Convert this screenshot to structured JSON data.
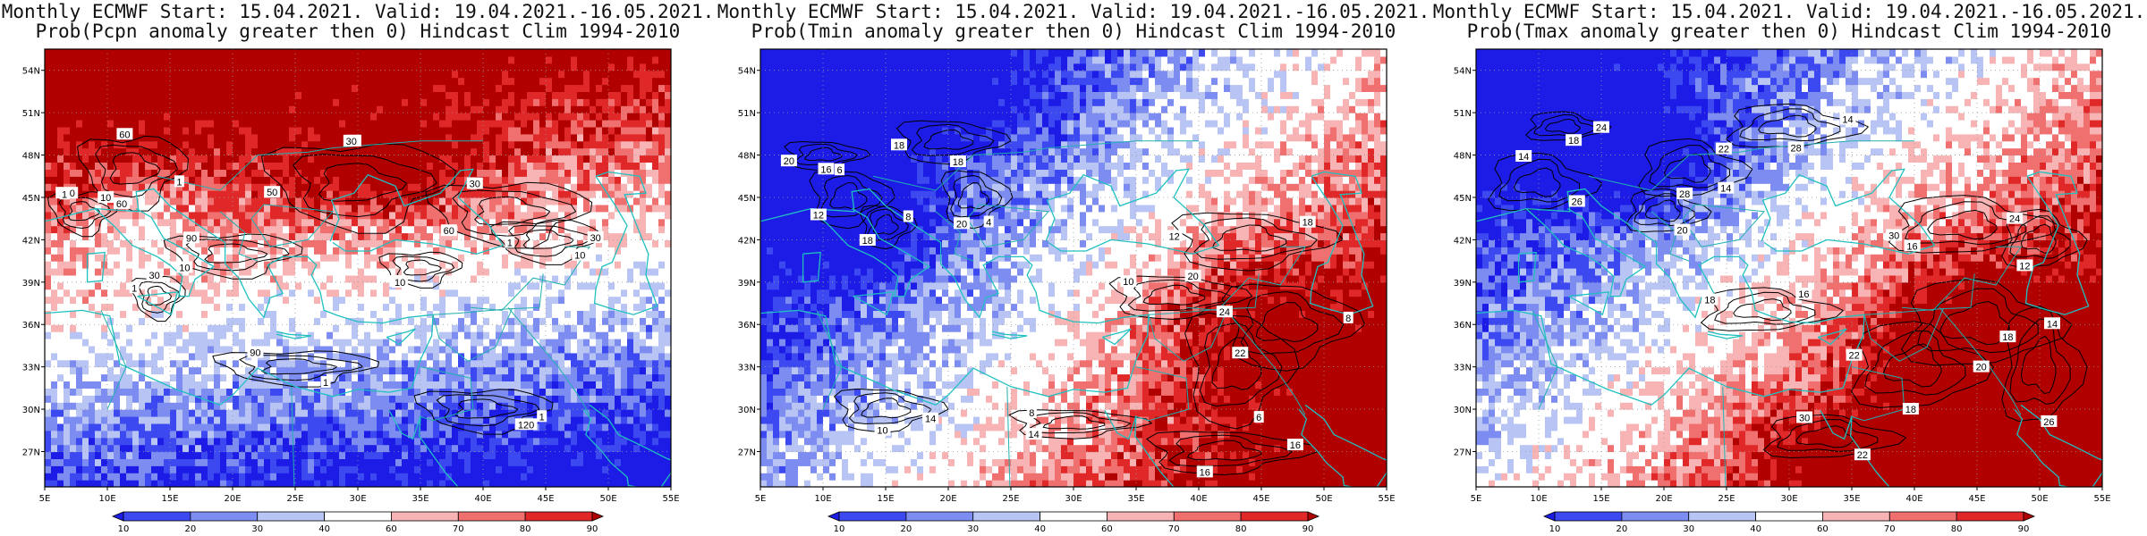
{
  "panels": [
    {
      "title1": "Monthly ECMWF Start: 15.04.2021. Valid: 19.04.2021.-16.05.2021.",
      "title2": "Prob(Pcpn anomaly greater then 0) Hindcast Clim 1994-2010",
      "variable": "precipitation",
      "contour_labels": [
        "60",
        "90",
        "60",
        "120",
        "90",
        "60",
        "30",
        "90",
        "120",
        "30",
        "60",
        "50",
        "30",
        "10",
        "10",
        "10",
        "10",
        "1",
        "1",
        "1",
        "1",
        "30",
        "1",
        "1"
      ]
    },
    {
      "title1": "Monthly ECMWF Start: 15.04.2021. Valid: 19.04.2021.-16.05.2021.",
      "title2": "Prob(Tmin anomaly greater then 0) Hindcast Clim 1994-2010",
      "variable": "tmin",
      "contour_labels": [
        "6",
        "8",
        "4",
        "12",
        "8",
        "6",
        "10",
        "10",
        "14",
        "16",
        "18",
        "16",
        "12",
        "18",
        "20",
        "18",
        "22",
        "24",
        "20",
        "14",
        "8",
        "16",
        "18",
        "20"
      ]
    },
    {
      "title1": "Monthly ECMWF Start: 15.04.2021. Valid: 19.04.2021.-16.05.2021.",
      "title2": "Prob(Tmax anomaly greater then 0) Hindcast Clim 1994-2010",
      "variable": "tmax",
      "contour_labels": [
        "14",
        "14",
        "14",
        "16",
        "12",
        "14",
        "18",
        "16",
        "18",
        "20",
        "22",
        "24",
        "26",
        "22",
        "28",
        "30",
        "24",
        "20",
        "22",
        "18",
        "26",
        "28",
        "30",
        "18"
      ]
    }
  ],
  "axes": {
    "lat_ticks": [
      "54N",
      "51N",
      "48N",
      "45N",
      "42N",
      "39N",
      "36N",
      "33N",
      "30N",
      "27N"
    ],
    "lon_ticks": [
      "5E",
      "10E",
      "15E",
      "20E",
      "25E",
      "30E",
      "35E",
      "40E",
      "45E",
      "50E",
      "55E"
    ]
  },
  "colorbar": {
    "ticks": [
      "10",
      "20",
      "30",
      "40",
      "60",
      "70",
      "80",
      "90"
    ],
    "colors": [
      "#1c1ce6",
      "#3c48f0",
      "#7c8cf0",
      "#b8c4f4",
      "#ffffff",
      "#f8b4b4",
      "#f07070",
      "#e02828",
      "#b00000"
    ]
  }
}
